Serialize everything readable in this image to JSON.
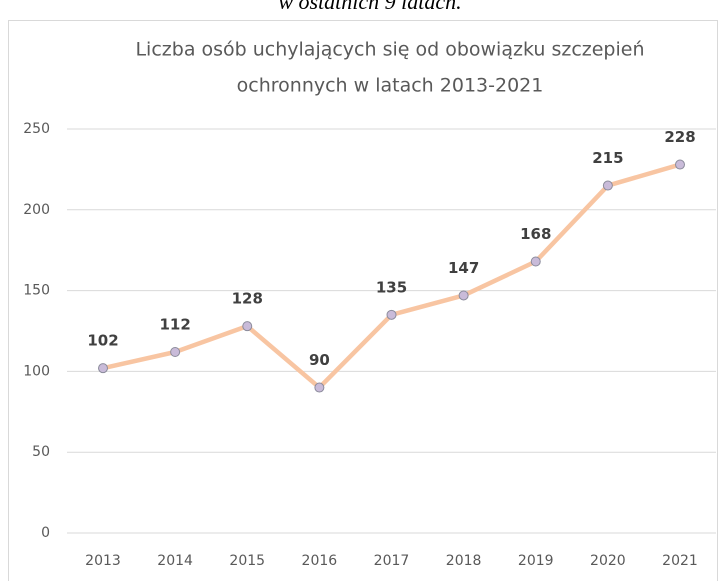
{
  "caption": "w ostatnich 9 latach.",
  "chart_data": {
    "type": "line",
    "title": [
      "Liczba osób uchylających się od obowiązku szczepień",
      "ochronnych w latach 2013-2021"
    ],
    "categories": [
      "2013",
      "2014",
      "2015",
      "2016",
      "2017",
      "2018",
      "2019",
      "2020",
      "2021"
    ],
    "series": [
      {
        "color": "#f8c5a2",
        "marker_color": "#c9bbd9",
        "values": [
          102,
          112,
          128,
          90,
          135,
          147,
          168,
          215,
          228
        ]
      }
    ],
    "ylim": [
      0,
      250
    ],
    "yticks": [
      0,
      50,
      100,
      150,
      200,
      250
    ],
    "grid": true,
    "data_labels": true
  }
}
